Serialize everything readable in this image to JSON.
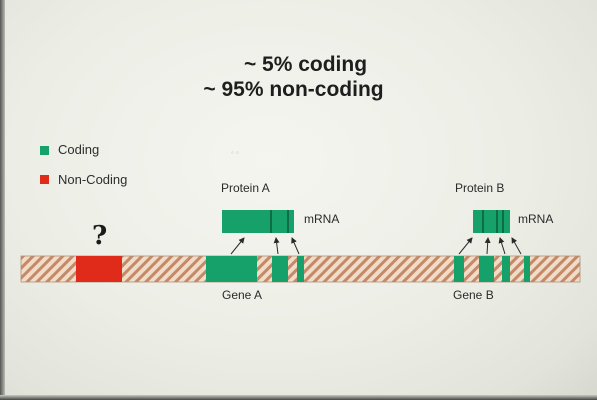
{
  "title": {
    "line1": "~ 5% coding",
    "line2": "~ 95% non-coding"
  },
  "legend": {
    "coding_label": "Coding",
    "noncoding_label": "Non-Coding"
  },
  "gene_a": {
    "protein_label": "Protein A",
    "mrna_label": "mRNA",
    "gene_label": "Gene A"
  },
  "gene_b": {
    "protein_label": "Protein B",
    "mrna_label": "mRNA",
    "gene_label": "Gene B"
  },
  "unknown_region": {
    "mark": "?"
  },
  "colors": {
    "coding": "#16a16a",
    "noncoding": "#e02a1a",
    "dna_stripe_light": "#f0dcc8",
    "dna_stripe_dark": "#c48a68",
    "background": "#eef0e8"
  }
}
